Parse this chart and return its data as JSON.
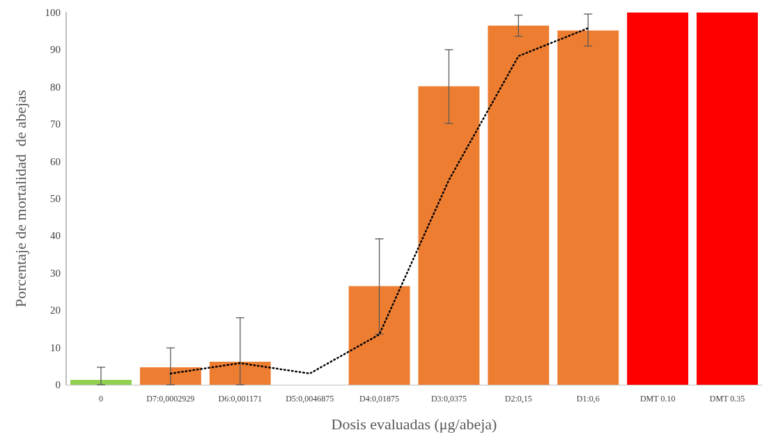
{
  "chart_data": {
    "type": "bar",
    "xlabel": "Dosis evaluadas (μg/abeja)",
    "ylabel": "Porcentaje de mortalidad  de abejas",
    "categories": [
      "0",
      "D7:0,0002929",
      "D6:0,001171",
      "D5:0,0046875",
      "D4:0,01875",
      "D3:0,0375",
      "D2:0,15",
      "D1:0,6",
      "DMT 0.10",
      "DMT 0.35"
    ],
    "ylim": [
      0,
      100
    ],
    "yticks": [
      0,
      10,
      20,
      30,
      40,
      50,
      60,
      70,
      80,
      90,
      100
    ],
    "grid": false,
    "series": [
      {
        "values": [
          1.3,
          4.7,
          6.2,
          0,
          26.5,
          80.2,
          96.5,
          95.2,
          100,
          100
        ],
        "colors": [
          "#92d050",
          "#ed7d31",
          "#ed7d31",
          "#ed7d31",
          "#ed7d31",
          "#ed7d31",
          "#ed7d31",
          "#ed7d31",
          "#ff0000",
          "#ff0000"
        ],
        "errors": [
          [
            0,
            4.7
          ],
          [
            0,
            9.9
          ],
          [
            0,
            18
          ],
          null,
          [
            13.6,
            39.2
          ],
          [
            70.2,
            90
          ],
          [
            93.6,
            99.3
          ],
          [
            91,
            99.6
          ],
          null,
          null
        ]
      },
      {
        "type": "line",
        "color": "#000000",
        "line_style": "dotted",
        "marker": "none",
        "values": [
          null,
          3,
          5.8,
          3,
          13.5,
          55,
          88.3,
          95.8,
          null,
          null
        ]
      }
    ]
  }
}
